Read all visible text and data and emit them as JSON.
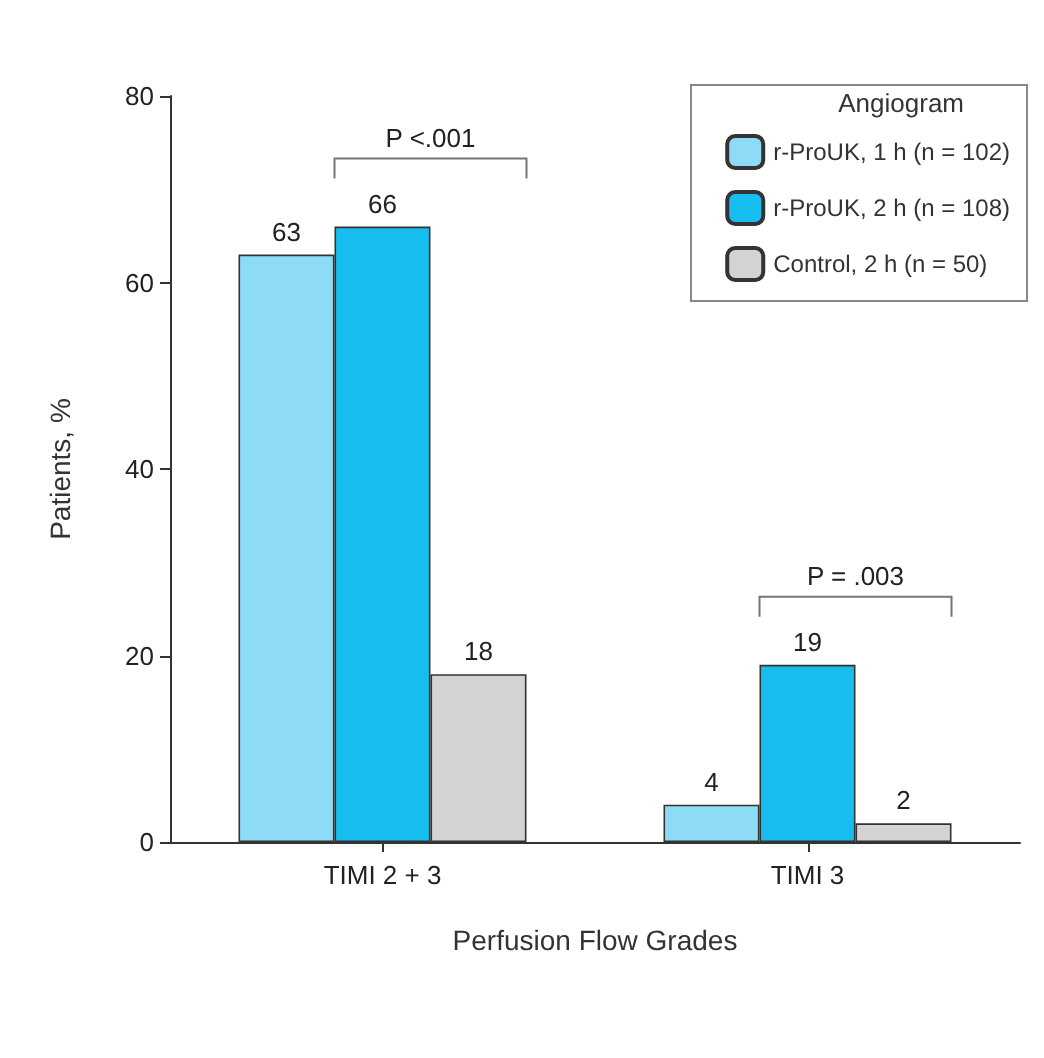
{
  "chart_data": {
    "type": "bar",
    "xlabel": "Perfusion Flow Grades",
    "ylabel": "Patients, %",
    "legend_title": "Angiogram",
    "categories": [
      "TIMI 2 + 3",
      "TIMI 3"
    ],
    "series": [
      {
        "name": "r-ProUK, 1 h (n = 102)",
        "color": "#8edbf5",
        "values": [
          63,
          4
        ]
      },
      {
        "name": "r-ProUK, 2 h (n = 108)",
        "color": "#16bdee",
        "values": [
          66,
          19
        ]
      },
      {
        "name": "Control, 2 h (n = 50)",
        "color": "#d3d3d3",
        "values": [
          18,
          2
        ]
      }
    ],
    "ylim": [
      0,
      80
    ],
    "yticks": [
      0,
      20,
      40,
      60,
      80
    ],
    "grid": false,
    "legend": "top right",
    "data_labels": true,
    "annotations": [
      "P <.001",
      "P = .003"
    ]
  }
}
